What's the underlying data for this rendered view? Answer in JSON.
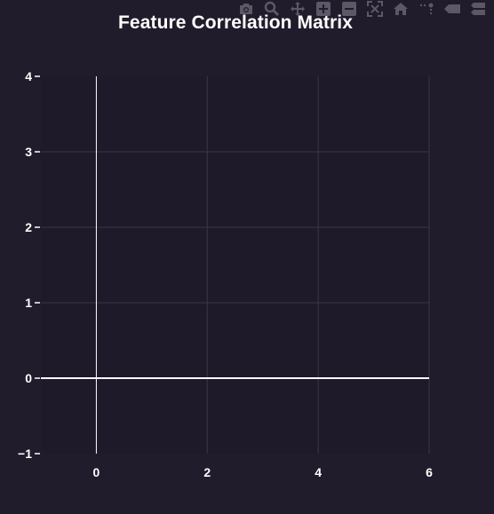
{
  "colors": {
    "paper_bg": "#201c2b",
    "plot_bg": "#1e1a29",
    "grid": "#3a3645",
    "zero_line": "#ffffff",
    "text": "#ffffff",
    "modebar_icon": "#5c5866"
  },
  "modebar": {
    "buttons": [
      {
        "name": "camera-icon"
      },
      {
        "name": "zoom-icon"
      },
      {
        "name": "pan-icon"
      },
      {
        "name": "zoom-in-icon"
      },
      {
        "name": "zoom-out-icon"
      },
      {
        "name": "autoscale-icon"
      },
      {
        "name": "home-icon"
      },
      {
        "name": "spike-lines-icon"
      },
      {
        "name": "hover-closest-icon"
      },
      {
        "name": "hover-compare-icon"
      }
    ]
  },
  "chart_data": {
    "type": "heatmap",
    "title": "Feature Correlation Matrix",
    "xlabel": "",
    "ylabel": "",
    "xlim": [
      -1,
      6
    ],
    "ylim": [
      -1,
      4
    ],
    "x_ticks": [
      0,
      2,
      4,
      6
    ],
    "x_tick_labels": [
      "0",
      "2",
      "4",
      "6"
    ],
    "y_ticks": [
      -1,
      0,
      1,
      2,
      3,
      4
    ],
    "y_tick_labels": [
      "−1",
      "0",
      "1",
      "2",
      "3",
      "4"
    ],
    "grid": true,
    "series": []
  }
}
